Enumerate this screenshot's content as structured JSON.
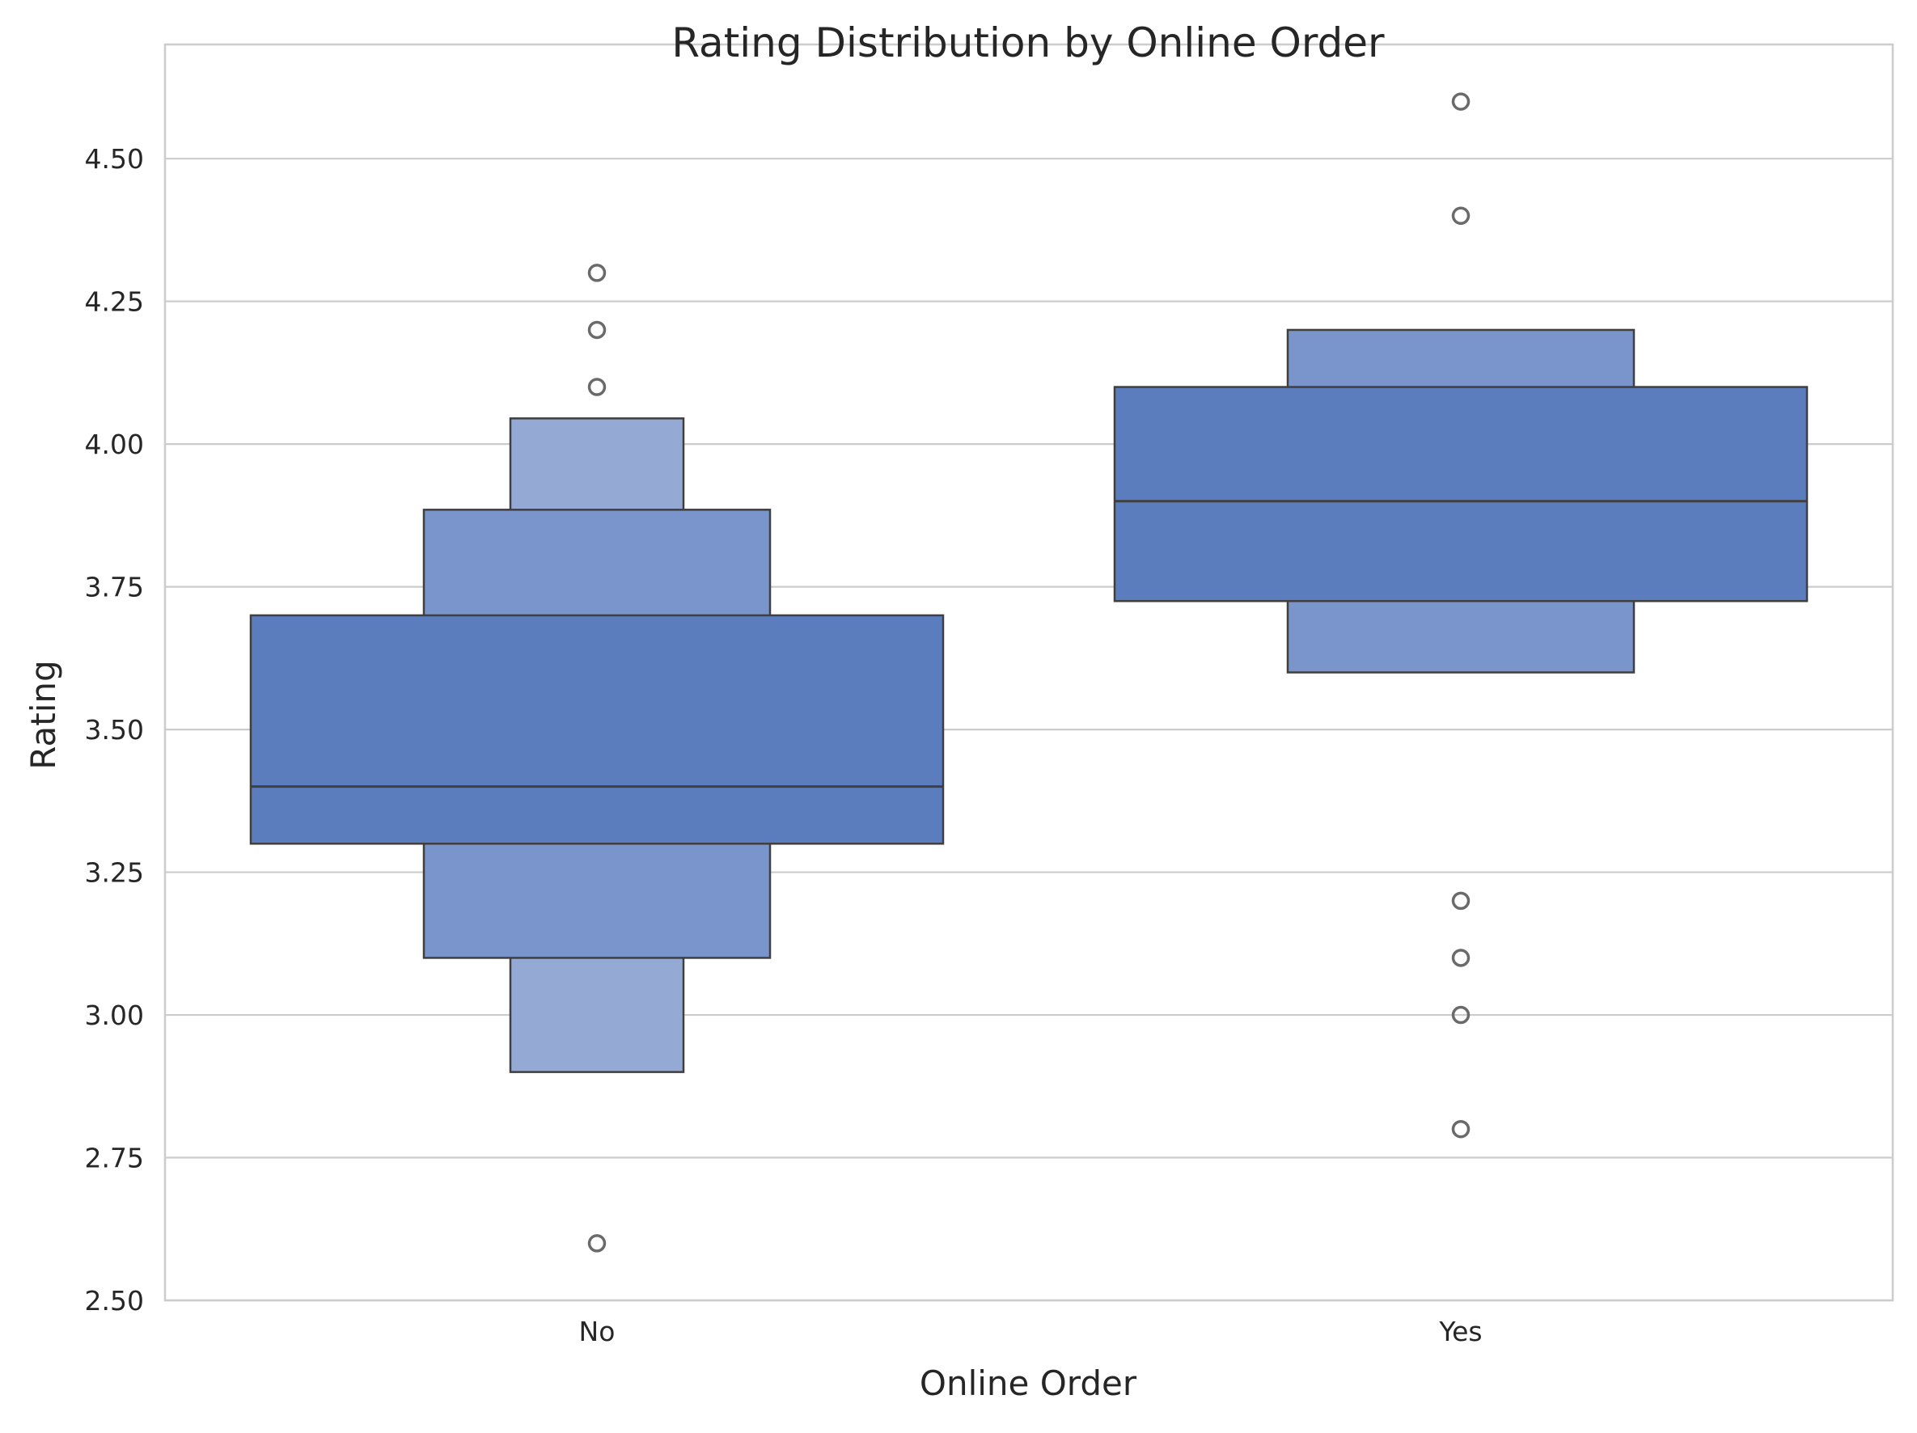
{
  "chart_data": {
    "type": "boxen",
    "title": "Rating Distribution by Online Order",
    "xlabel": "Online Order",
    "ylabel": "Rating",
    "categories": [
      "No",
      "Yes"
    ],
    "ylim": [
      2.5,
      4.7
    ],
    "yticks": [
      2.5,
      2.75,
      3.0,
      3.25,
      3.5,
      3.75,
      4.0,
      4.25,
      4.5
    ],
    "ytick_labels": [
      "2.50",
      "2.75",
      "3.00",
      "3.25",
      "3.50",
      "3.75",
      "4.00",
      "4.25",
      "4.50"
    ],
    "grid": true,
    "colors": {
      "box_level_1": "#5b7dbe",
      "box_level_2": "#7995cb",
      "box_level_3": "#94aad5",
      "edge": "#3f3f3f",
      "median": "#3f3f3f",
      "outlier": "#6a6a6a",
      "grid": "#cccccc",
      "frame": "#cccccc"
    },
    "groups": [
      {
        "category": "No",
        "median": 3.4,
        "boxes": [
          {
            "low": 3.3,
            "high": 3.7
          },
          {
            "low": 3.1,
            "high": 3.885
          },
          {
            "low": 2.9,
            "high": 4.045
          }
        ],
        "outliers": [
          4.3,
          4.2,
          4.1,
          2.6
        ]
      },
      {
        "category": "Yes",
        "median": 3.9,
        "boxes": [
          {
            "low": 3.725,
            "high": 4.1
          },
          {
            "low": 3.6,
            "high": 4.2
          }
        ],
        "outliers": [
          4.6,
          4.4,
          3.2,
          3.1,
          3.0,
          2.8
        ]
      }
    ]
  }
}
